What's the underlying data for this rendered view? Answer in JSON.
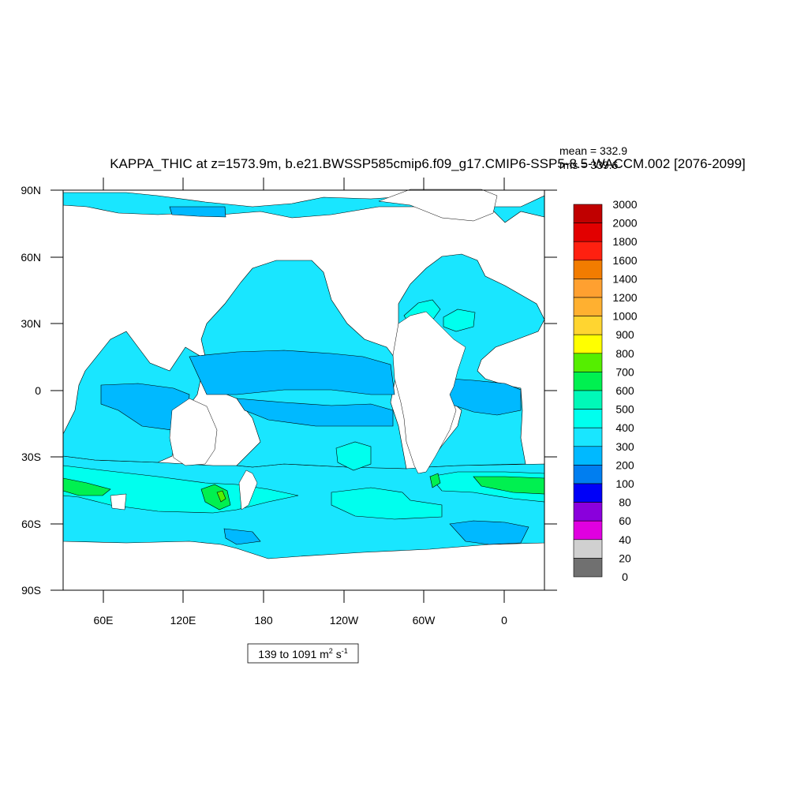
{
  "title": "KAPPA_THIC at z=1573.9m, b.e21.BWSSP585cmip6.f09_g17.CMIP6-SSP5-8.5-WACCM.002 [2076-2099]",
  "stats": {
    "mean": "mean = 332.9",
    "rms": "rms = 339.6"
  },
  "y_ticks": [
    "90N",
    "60N",
    "30N",
    "0",
    "30S",
    "60S",
    "90S"
  ],
  "x_ticks": [
    "60E",
    "120E",
    "180",
    "120W",
    "60W",
    "0"
  ],
  "range_box": {
    "prefix": "139 to 1091 m",
    "exp1": "2",
    "mid": " s",
    "exp2": "-1"
  },
  "colorbar": {
    "labels": [
      "3000",
      "2000",
      "1800",
      "1600",
      "1400",
      "1200",
      "1000",
      "900",
      "800",
      "700",
      "600",
      "500",
      "400",
      "300",
      "200",
      "100",
      "80",
      "60",
      "40",
      "20",
      "0"
    ],
    "colors": [
      "#c00000",
      "#e20000",
      "#ff2010",
      "#f27c00",
      "#ffa030",
      "#ffb030",
      "#ffd530",
      "#ffff00",
      "#55ee00",
      "#00f050",
      "#00f8b8",
      "#00ffee",
      "#19e6ff",
      "#00b9ff",
      "#007ef0",
      "#0000f8",
      "#8a00dc",
      "#e000e0",
      "#d0d0d0",
      "#707070"
    ]
  },
  "colors": {
    "land": "#ffffff",
    "ocean_400_500": "#19e6ff",
    "ocean_300_400": "#00b9ff",
    "ocean_500_600": "#00ffee",
    "ocean_600_700": "#00f050",
    "ocean_700_800": "#55ee00"
  }
}
